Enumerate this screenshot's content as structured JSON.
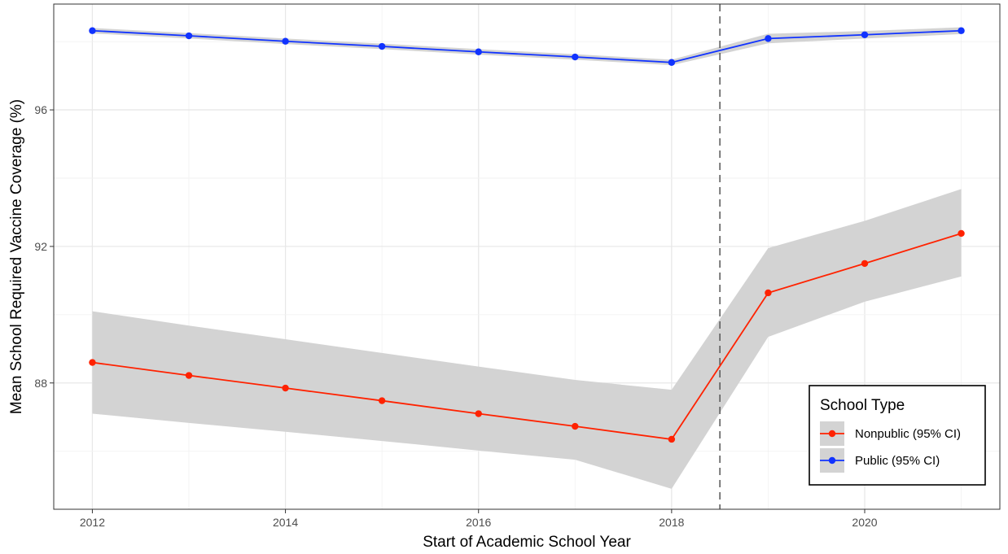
{
  "chart_data": {
    "type": "line",
    "xlabel": "Start of Academic School Year",
    "ylabel": "Mean School Required Vaccine Coverage (%)",
    "x": [
      2012,
      2013,
      2014,
      2015,
      2016,
      2017,
      2018,
      2019,
      2020,
      2021
    ],
    "xlim": [
      2011.6,
      2021.4
    ],
    "ylim": [
      84.3,
      99.1
    ],
    "x_ticks": [
      "2012",
      "2014",
      "2016",
      "2018",
      "2020"
    ],
    "y_ticks": [
      "88",
      "92",
      "96"
    ],
    "grid": true,
    "vline": {
      "x": 2018.5,
      "style": "dashed"
    },
    "series": [
      {
        "name": "Nonpublic (95% CI)",
        "color": "#ff2200",
        "values": [
          88.6,
          88.22,
          87.85,
          87.48,
          87.1,
          86.73,
          86.35,
          90.64,
          91.5,
          92.38
        ],
        "ci_lower": [
          87.1,
          86.83,
          86.57,
          86.3,
          86.02,
          85.75,
          84.9,
          89.35,
          90.38,
          91.12
        ],
        "ci_upper": [
          90.1,
          89.68,
          89.28,
          88.88,
          88.48,
          88.09,
          87.8,
          91.95,
          92.75,
          93.68
        ]
      },
      {
        "name": "Public (95% CI)",
        "color": "#1133ff",
        "values": [
          98.32,
          98.17,
          98.01,
          97.86,
          97.7,
          97.55,
          97.39,
          98.09,
          98.2,
          98.32
        ],
        "ci_lower": [
          98.24,
          98.09,
          97.93,
          97.78,
          97.62,
          97.47,
          97.31,
          97.95,
          98.09,
          98.22
        ],
        "ci_upper": [
          98.4,
          98.25,
          98.09,
          97.94,
          97.78,
          97.63,
          97.47,
          98.23,
          98.31,
          98.42
        ]
      }
    ],
    "legend": {
      "title": "School Type",
      "position": "bottom-right",
      "band_color": "#d3d3d3"
    }
  }
}
